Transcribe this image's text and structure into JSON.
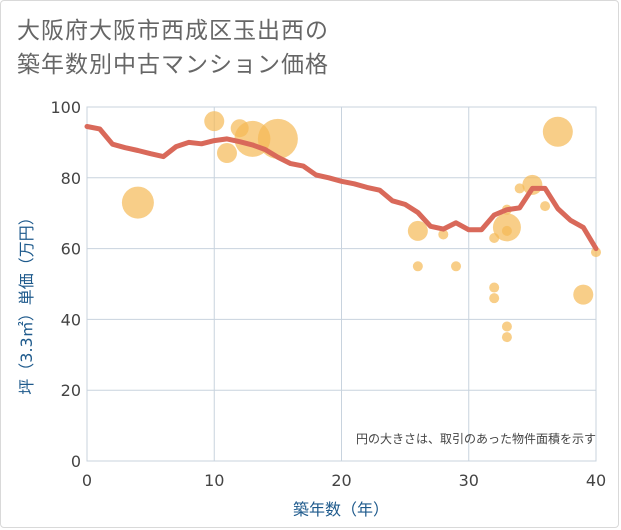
{
  "title": {
    "line1": "大阪府大阪市西成区玉出西の",
    "line2": "築年数別中古マンション価格"
  },
  "colors": {
    "line": "#d9695a",
    "bubble": "#f5b955",
    "grid": "#c8d3de",
    "axis_text": "#444444",
    "label_text": "#1e5a8c"
  },
  "chart_data": {
    "type": "scatter",
    "title": "大阪府大阪市西成区玉出西の築年数別中古マンション価格",
    "xlabel": "築年数（年）",
    "ylabel": "坪（3.3㎡）単価（万円）",
    "xlim": [
      0,
      40
    ],
    "ylim": [
      0,
      100
    ],
    "xticks": [
      0,
      10,
      20,
      30,
      40
    ],
    "yticks": [
      0,
      20,
      40,
      60,
      80,
      100
    ],
    "grid": true,
    "annotation": "円の大きさは、取引のあった物件面積を示す",
    "series": [
      {
        "type": "line",
        "x": [
          0,
          1,
          2,
          3,
          4,
          5,
          6,
          7,
          8,
          9,
          10,
          11,
          12,
          13,
          14,
          15,
          16,
          17,
          18,
          19,
          20,
          21,
          22,
          23,
          24,
          25,
          26,
          27,
          28,
          29,
          30,
          31,
          32,
          33,
          34,
          35,
          36,
          37,
          38,
          39,
          40
        ],
        "values": [
          94.5,
          93.8,
          89.5,
          88.5,
          87.7,
          86.8,
          86,
          88.8,
          90,
          89.6,
          90.5,
          91,
          90.2,
          89.3,
          88,
          85.8,
          84,
          83.3,
          80.8,
          80,
          79,
          78.3,
          77.3,
          76.5,
          73.5,
          72.5,
          70.2,
          66.3,
          65.5,
          67.3,
          65.3,
          65.3,
          69.5,
          71,
          71.5,
          77,
          77,
          71.3,
          68,
          66,
          60
        ]
      },
      {
        "type": "bubble",
        "points": [
          {
            "x": 4,
            "y": 73,
            "size": 3.2
          },
          {
            "x": 10,
            "y": 96,
            "size": 2.0
          },
          {
            "x": 11,
            "y": 87,
            "size": 2.0
          },
          {
            "x": 12,
            "y": 94,
            "size": 1.8
          },
          {
            "x": 13,
            "y": 91,
            "size": 3.6
          },
          {
            "x": 15,
            "y": 91,
            "size": 4.0
          },
          {
            "x": 26,
            "y": 65,
            "size": 2.0
          },
          {
            "x": 26,
            "y": 55,
            "size": 1.0
          },
          {
            "x": 28,
            "y": 64,
            "size": 1.0
          },
          {
            "x": 29,
            "y": 55,
            "size": 1.0
          },
          {
            "x": 32,
            "y": 63,
            "size": 1.0
          },
          {
            "x": 32,
            "y": 49,
            "size": 1.0
          },
          {
            "x": 32,
            "y": 46,
            "size": 1.0
          },
          {
            "x": 33,
            "y": 66,
            "size": 2.8
          },
          {
            "x": 33,
            "y": 65,
            "size": 1.0
          },
          {
            "x": 33,
            "y": 71,
            "size": 1.0
          },
          {
            "x": 33,
            "y": 38,
            "size": 1.0
          },
          {
            "x": 33,
            "y": 35,
            "size": 1.0
          },
          {
            "x": 34,
            "y": 77,
            "size": 1.0
          },
          {
            "x": 35,
            "y": 78,
            "size": 2.0
          },
          {
            "x": 36,
            "y": 72,
            "size": 1.0
          },
          {
            "x": 37,
            "y": 93,
            "size": 3.0
          },
          {
            "x": 39,
            "y": 47,
            "size": 2.0
          },
          {
            "x": 40,
            "y": 59,
            "size": 1.0
          }
        ]
      }
    ]
  }
}
